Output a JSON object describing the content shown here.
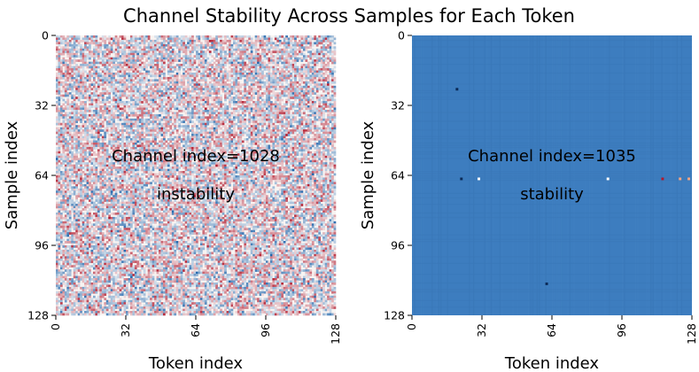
{
  "chart_data": {
    "title": "Channel Stability Across Samples for Each Token",
    "panels": [
      {
        "type": "heatmap",
        "rows": 128,
        "cols": 128,
        "xlabel": "Token index",
        "ylabel": "Sample index",
        "xticks": [
          "0",
          "32",
          "64",
          "96",
          "128"
        ],
        "yticks": [
          "0",
          "32",
          "64",
          "96",
          "128"
        ],
        "xlim": [
          0,
          128
        ],
        "ylim": [
          128,
          0
        ],
        "annotations": [
          "Channel index=1028",
          "instability"
        ],
        "colormap": "diverging",
        "pattern": "noisy",
        "colors": {
          "low": "#2166ac",
          "mid": "#f7f7f7",
          "high": "#b2182b"
        }
      },
      {
        "type": "heatmap",
        "rows": 128,
        "cols": 128,
        "xlabel": "Token index",
        "ylabel": "Sample index",
        "xticks": [
          "0",
          "32",
          "64",
          "96",
          "128"
        ],
        "yticks": [
          "0",
          "32",
          "64",
          "96",
          "128"
        ],
        "xlim": [
          0,
          128
        ],
        "ylim": [
          128,
          0
        ],
        "annotations": [
          "Channel index=1035",
          "stability"
        ],
        "colormap": "diverging",
        "pattern": "uniform",
        "base_color": "#3d7dbf",
        "outliers": [
          {
            "row": 65,
            "col": 22,
            "color": "#0b2a57"
          },
          {
            "row": 65,
            "col": 30,
            "color": "#ffffff"
          },
          {
            "row": 65,
            "col": 89,
            "color": "#ffffff"
          },
          {
            "row": 65,
            "col": 114,
            "color": "#b2182b"
          },
          {
            "row": 65,
            "col": 122,
            "color": "#f4a582"
          },
          {
            "row": 65,
            "col": 126,
            "color": "#f4a582"
          },
          {
            "row": 113,
            "col": 61,
            "color": "#0b2a57"
          },
          {
            "row": 24,
            "col": 20,
            "color": "#0b2a57"
          }
        ]
      }
    ]
  }
}
